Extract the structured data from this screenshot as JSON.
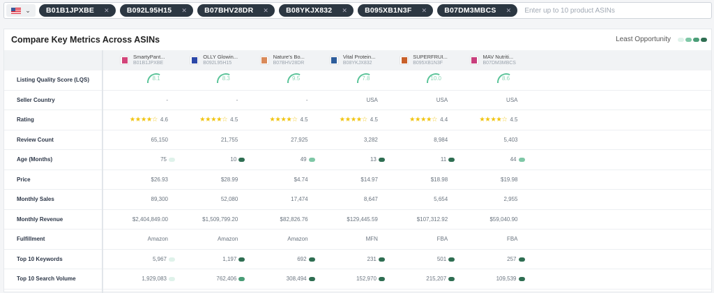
{
  "search": {
    "country": "US",
    "asins": [
      "B01B1JPXBE",
      "B092L95H15",
      "B07BHV28DR",
      "B08YKJX832",
      "B095XB1N3F",
      "B07DM3MBCS"
    ],
    "placeholder": "Enter up to 10 product ASINs"
  },
  "card": {
    "title": "Compare Key Metrics Across ASINs",
    "legend_label": "Least Opportunity"
  },
  "colors": {
    "least": "#dff2ea",
    "low": "#7fc7a6",
    "mid": "#4a9d77",
    "most": "#2f6e52",
    "gauge": "#5cc49a",
    "star": "#f1c40f"
  },
  "products": [
    {
      "name": "SmartyPant...",
      "asin": "B01B1JPXBE",
      "thumb": "#d2457a"
    },
    {
      "name": "OLLY Glowin...",
      "asin": "B092L95H15",
      "thumb": "#2c48a8"
    },
    {
      "name": "Nature's Bo...",
      "asin": "B07BHV28DR",
      "thumb": "#d98a5a"
    },
    {
      "name": "Vital Protein...",
      "asin": "B08YKJX832",
      "thumb": "#2d5d9b"
    },
    {
      "name": "SUPERFRUI...",
      "asin": "B095XB1N3F",
      "thumb": "#c8602a"
    },
    {
      "name": "MAV Nutriti...",
      "asin": "B07DM3MBCS",
      "thumb": "#c83f7d"
    }
  ],
  "rows": [
    {
      "label": "Listing Quality Score (LQS)",
      "type": "gauge",
      "values": [
        "8.1",
        "8.3",
        "9.5",
        "7.8",
        "10.0",
        "8.6"
      ]
    },
    {
      "label": "Seller Country",
      "values": [
        "-",
        "-",
        "-",
        "USA",
        "USA",
        "USA"
      ]
    },
    {
      "label": "Rating",
      "type": "rating",
      "values": [
        "4.6",
        "4.5",
        "4.5",
        "4.5",
        "4.4",
        "4.5"
      ]
    },
    {
      "label": "Review Count",
      "values": [
        "65,150",
        "21,755",
        "27,925",
        "3,282",
        "8,984",
        "5,403"
      ]
    },
    {
      "label": "Age (Months)",
      "values": [
        "75",
        "10",
        "49",
        "13",
        "11",
        "44"
      ],
      "levels": [
        "c1",
        "c4",
        "c2",
        "c4",
        "c4",
        "c2"
      ]
    },
    {
      "label": "Price",
      "values": [
        "$26.93",
        "$28.99",
        "$4.74",
        "$14.97",
        "$18.98",
        "$19.98"
      ]
    },
    {
      "label": "Monthly Sales",
      "values": [
        "89,300",
        "52,080",
        "17,474",
        "8,647",
        "5,654",
        "2,955"
      ]
    },
    {
      "label": "Monthly Revenue",
      "values": [
        "$2,404,849.00",
        "$1,509,799.20",
        "$82,826.76",
        "$129,445.59",
        "$107,312.92",
        "$59,040.90"
      ]
    },
    {
      "label": "Fulfillment",
      "values": [
        "Amazon",
        "Amazon",
        "Amazon",
        "MFN",
        "FBA",
        "FBA"
      ]
    },
    {
      "label": "Top 10 Keywords",
      "values": [
        "5,967",
        "1,197",
        "692",
        "231",
        "501",
        "257"
      ],
      "levels": [
        "c1",
        "c4",
        "c4",
        "c4",
        "c4",
        "c4"
      ]
    },
    {
      "label": "Top 10 Search Volume",
      "values": [
        "1,929,083",
        "762,406",
        "308,494",
        "152,970",
        "215,207",
        "109,539"
      ],
      "levels": [
        "c1",
        "c3",
        "c4",
        "c4",
        "c4",
        "c4"
      ]
    }
  ]
}
